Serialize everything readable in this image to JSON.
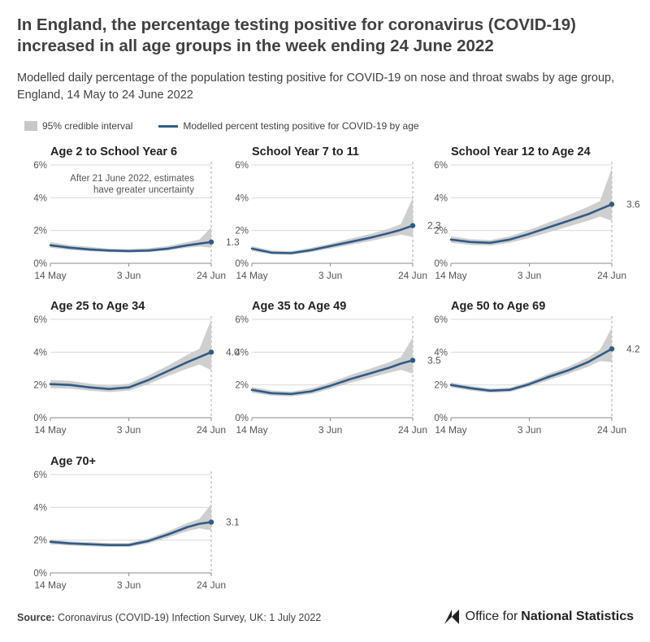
{
  "title": "In England, the percentage testing positive for coronavirus (COVID-19) increased in all age groups in the week ending 24 June 2022",
  "subtitle": "Modelled daily percentage of the population testing positive for COVID-19 on nose and throat swabs by age group, England, 14 May to 24 June 2022",
  "legend": {
    "interval_label": "95% credible interval",
    "line_label": "Modelled percent testing positive for COVID-19 by age"
  },
  "annotation": "After 21 June 2022, estimates have greater uncertainty",
  "source": {
    "label": "Source:",
    "text": "Coronavirus (COVID-19) Infection Survey, UK: 1 July 2022"
  },
  "logo": {
    "text_regular": "Office for",
    "text_bold": "National Statistics"
  },
  "colors": {
    "line": "#2f5b88",
    "band": "#cfcfcf",
    "axis_text": "#555555",
    "grid": "#d9d9d9"
  },
  "chart_data": [
    {
      "type": "line",
      "title": "Age 2 to School Year 6",
      "x_ticks": [
        "14 May",
        "3 Jun",
        "24 Jun"
      ],
      "y_ticks": [
        "0%",
        "2%",
        "4%",
        "6%"
      ],
      "ylim": [
        0,
        6
      ],
      "x": [
        "14 May",
        "19 May",
        "24 May",
        "29 May",
        "3 Jun",
        "8 Jun",
        "13 Jun",
        "18 Jun",
        "21 Jun",
        "24 Jun"
      ],
      "values": [
        1.1,
        0.95,
        0.85,
        0.78,
        0.75,
        0.78,
        0.9,
        1.1,
        1.2,
        1.3
      ],
      "lower": [
        0.95,
        0.82,
        0.74,
        0.68,
        0.66,
        0.68,
        0.78,
        0.95,
        1.02,
        0.95
      ],
      "upper": [
        1.3,
        1.1,
        1.0,
        0.9,
        0.87,
        0.92,
        1.05,
        1.3,
        1.45,
        2.2
      ],
      "end_label": "1.3"
    },
    {
      "type": "line",
      "title": "School Year 7 to 11",
      "x_ticks": [
        "14 May",
        "3 Jun",
        "24 Jun"
      ],
      "y_ticks": [
        "0%",
        "2%",
        "4%",
        "6%"
      ],
      "ylim": [
        0,
        6
      ],
      "x": [
        "14 May",
        "19 May",
        "24 May",
        "29 May",
        "3 Jun",
        "8 Jun",
        "13 Jun",
        "18 Jun",
        "21 Jun",
        "24 Jun"
      ],
      "values": [
        0.9,
        0.65,
        0.62,
        0.8,
        1.05,
        1.3,
        1.55,
        1.85,
        2.05,
        2.3
      ],
      "lower": [
        0.75,
        0.55,
        0.52,
        0.68,
        0.9,
        1.12,
        1.35,
        1.6,
        1.75,
        1.6
      ],
      "upper": [
        1.05,
        0.78,
        0.74,
        0.94,
        1.2,
        1.5,
        1.78,
        2.12,
        2.4,
        4.0
      ],
      "end_label": "2.3"
    },
    {
      "type": "line",
      "title": "School Year 12 to Age 24",
      "x_ticks": [
        "14 May",
        "3 Jun",
        "24 Jun"
      ],
      "y_ticks": [
        "0%",
        "2%",
        "4%",
        "6%"
      ],
      "ylim": [
        0,
        6
      ],
      "x": [
        "14 May",
        "19 May",
        "24 May",
        "29 May",
        "3 Jun",
        "8 Jun",
        "13 Jun",
        "18 Jun",
        "21 Jun",
        "24 Jun"
      ],
      "values": [
        1.45,
        1.3,
        1.25,
        1.45,
        1.8,
        2.2,
        2.6,
        3.0,
        3.3,
        3.6
      ],
      "lower": [
        1.25,
        1.12,
        1.08,
        1.25,
        1.55,
        1.9,
        2.25,
        2.6,
        2.85,
        2.6
      ],
      "upper": [
        1.65,
        1.48,
        1.42,
        1.65,
        2.05,
        2.5,
        2.95,
        3.45,
        3.8,
        5.8
      ],
      "end_label": "3.6"
    },
    {
      "type": "line",
      "title": "Age 25 to Age 34",
      "x_ticks": [
        "14 May",
        "3 Jun",
        "24 Jun"
      ],
      "y_ticks": [
        "0%",
        "2%",
        "4%",
        "6%"
      ],
      "ylim": [
        0,
        6
      ],
      "x": [
        "14 May",
        "19 May",
        "24 May",
        "29 May",
        "3 Jun",
        "8 Jun",
        "13 Jun",
        "18 Jun",
        "21 Jun",
        "24 Jun"
      ],
      "values": [
        2.05,
        2.0,
        1.85,
        1.75,
        1.85,
        2.3,
        2.85,
        3.4,
        3.7,
        4.0
      ],
      "lower": [
        1.8,
        1.78,
        1.65,
        1.56,
        1.65,
        2.05,
        2.55,
        3.0,
        3.25,
        2.9
      ],
      "upper": [
        2.3,
        2.25,
        2.08,
        1.96,
        2.08,
        2.58,
        3.18,
        3.85,
        4.2,
        6.0
      ],
      "end_label": "4.0"
    },
    {
      "type": "line",
      "title": "Age 35 to Age 49",
      "x_ticks": [
        "14 May",
        "3 Jun",
        "24 Jun"
      ],
      "y_ticks": [
        "0%",
        "2%",
        "4%",
        "6%"
      ],
      "ylim": [
        0,
        6
      ],
      "x": [
        "14 May",
        "19 May",
        "24 May",
        "29 May",
        "3 Jun",
        "8 Jun",
        "13 Jun",
        "18 Jun",
        "21 Jun",
        "24 Jun"
      ],
      "values": [
        1.7,
        1.5,
        1.45,
        1.6,
        1.95,
        2.35,
        2.7,
        3.05,
        3.3,
        3.5
      ],
      "lower": [
        1.52,
        1.35,
        1.3,
        1.44,
        1.76,
        2.12,
        2.44,
        2.74,
        2.92,
        2.7
      ],
      "upper": [
        1.88,
        1.66,
        1.6,
        1.78,
        2.15,
        2.6,
        2.98,
        3.38,
        3.7,
        4.9
      ],
      "end_label": "3.5"
    },
    {
      "type": "line",
      "title": "Age 50 to Age 69",
      "x_ticks": [
        "14 May",
        "3 Jun",
        "24 Jun"
      ],
      "y_ticks": [
        "0%",
        "2%",
        "4%",
        "6%"
      ],
      "ylim": [
        0,
        6
      ],
      "x": [
        "14 May",
        "19 May",
        "24 May",
        "29 May",
        "3 Jun",
        "8 Jun",
        "13 Jun",
        "18 Jun",
        "21 Jun",
        "24 Jun"
      ],
      "values": [
        2.0,
        1.8,
        1.65,
        1.7,
        2.05,
        2.5,
        2.9,
        3.4,
        3.8,
        4.2
      ],
      "lower": [
        1.85,
        1.66,
        1.52,
        1.57,
        1.9,
        2.3,
        2.68,
        3.12,
        3.45,
        3.4
      ],
      "upper": [
        2.15,
        1.94,
        1.78,
        1.83,
        2.2,
        2.7,
        3.12,
        3.68,
        4.15,
        5.5
      ],
      "end_label": "4.2"
    },
    {
      "type": "line",
      "title": "Age 70+",
      "x_ticks": [
        "14 May",
        "3 Jun",
        "24 Jun"
      ],
      "y_ticks": [
        "0%",
        "2%",
        "4%",
        "6%"
      ],
      "ylim": [
        0,
        6
      ],
      "x": [
        "14 May",
        "19 May",
        "24 May",
        "29 May",
        "3 Jun",
        "8 Jun",
        "13 Jun",
        "18 Jun",
        "21 Jun",
        "24 Jun"
      ],
      "values": [
        1.9,
        1.8,
        1.75,
        1.7,
        1.7,
        1.95,
        2.35,
        2.8,
        3.0,
        3.1
      ],
      "lower": [
        1.75,
        1.67,
        1.62,
        1.58,
        1.58,
        1.8,
        2.16,
        2.56,
        2.72,
        2.6
      ],
      "upper": [
        2.05,
        1.93,
        1.88,
        1.82,
        1.82,
        2.1,
        2.54,
        3.05,
        3.3,
        4.2
      ],
      "end_label": "3.1"
    }
  ]
}
